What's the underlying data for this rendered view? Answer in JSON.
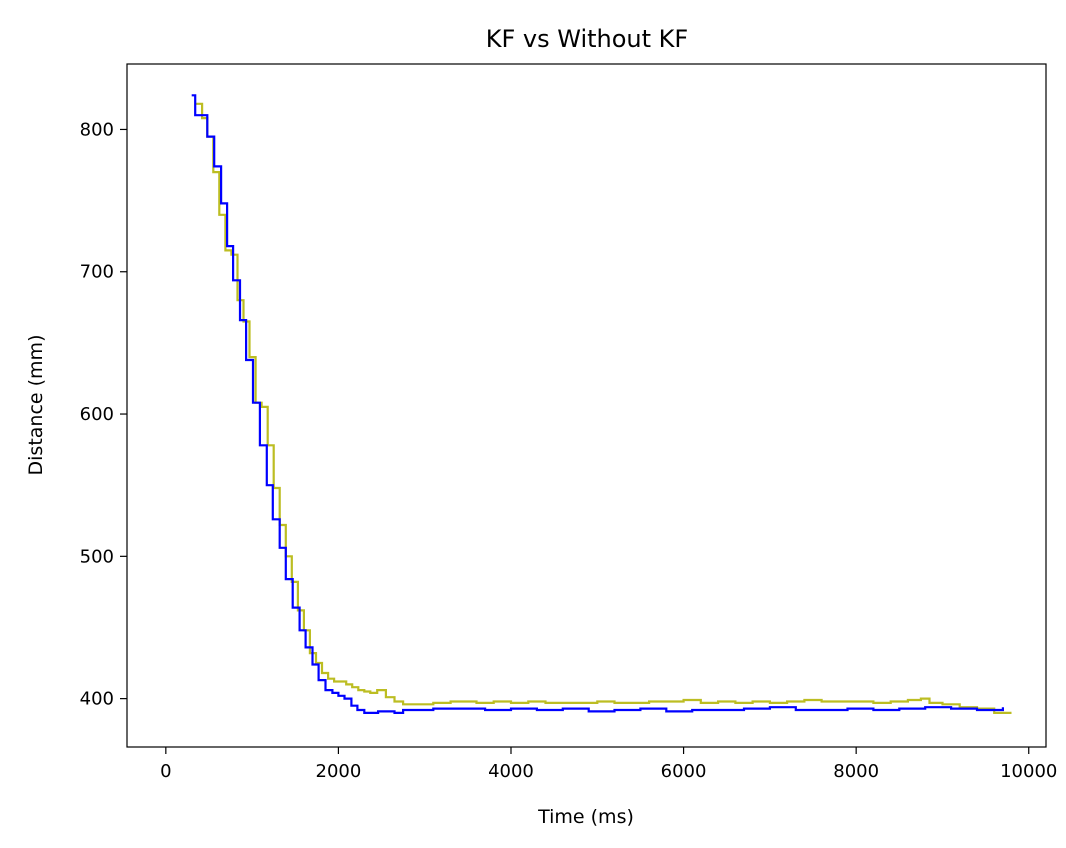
{
  "chart_data": {
    "type": "line",
    "title": "KF vs Without KF",
    "xlabel": "Time (ms)",
    "ylabel": "Distance (mm)",
    "xlim": [
      -450,
      10200
    ],
    "ylim": [
      366,
      846
    ],
    "xticks": [
      0,
      2000,
      4000,
      6000,
      8000,
      10000
    ],
    "xtick_labels": [
      "0",
      "2000",
      "4000",
      "6000",
      "8000",
      "10000"
    ],
    "yticks": [
      400,
      500,
      600,
      700,
      800
    ],
    "ytick_labels": [
      "400",
      "500",
      "600",
      "700",
      "800"
    ],
    "grid": false,
    "series": [
      {
        "color": "#bcbd22",
        "step": true,
        "x": [
          350,
          420,
          480,
          550,
          620,
          690,
          760,
          830,
          900,
          970,
          1040,
          1110,
          1180,
          1250,
          1320,
          1390,
          1460,
          1530,
          1600,
          1670,
          1740,
          1810,
          1880,
          1950,
          2020,
          2090,
          2160,
          2230,
          2300,
          2370,
          2450,
          2550,
          2650,
          2750,
          2900,
          3100,
          3300,
          3450,
          3600,
          3800,
          4000,
          4200,
          4400,
          4600,
          4800,
          5000,
          5200,
          5400,
          5600,
          5800,
          6000,
          6200,
          6400,
          6600,
          6800,
          7000,
          7200,
          7400,
          7600,
          7800,
          8000,
          8200,
          8400,
          8600,
          8750,
          8850,
          9000,
          9200,
          9400,
          9600,
          9800
        ],
        "y": [
          818,
          808,
          795,
          770,
          740,
          715,
          712,
          680,
          665,
          640,
          608,
          605,
          578,
          548,
          522,
          500,
          482,
          462,
          448,
          432,
          425,
          418,
          414,
          412,
          412,
          410,
          408,
          406,
          405,
          404,
          406,
          401,
          398,
          396,
          396,
          397,
          398,
          398,
          397,
          398,
          397,
          398,
          397,
          397,
          397,
          398,
          397,
          397,
          398,
          398,
          399,
          397,
          398,
          397,
          398,
          397,
          398,
          399,
          398,
          398,
          398,
          397,
          398,
          399,
          400,
          397,
          396,
          394,
          393,
          390,
          390
        ]
      },
      {
        "color": "#0000ff",
        "step": true,
        "x": [
          300,
          340,
          420,
          480,
          560,
          640,
          710,
          780,
          860,
          930,
          1010,
          1090,
          1170,
          1240,
          1320,
          1390,
          1470,
          1550,
          1620,
          1700,
          1770,
          1850,
          1930,
          2000,
          2070,
          2150,
          2220,
          2300,
          2380,
          2460,
          2550,
          2650,
          2750,
          2900,
          3100,
          3300,
          3500,
          3700,
          4000,
          4300,
          4600,
          4900,
          5200,
          5500,
          5800,
          6100,
          6400,
          6700,
          7000,
          7300,
          7600,
          7900,
          8200,
          8500,
          8800,
          9100,
          9400,
          9700
        ],
        "y": [
          824,
          810,
          810,
          795,
          774,
          748,
          718,
          694,
          666,
          638,
          608,
          578,
          550,
          526,
          506,
          484,
          464,
          448,
          436,
          424,
          413,
          406,
          404,
          402,
          400,
          395,
          392,
          390,
          390,
          391,
          391,
          390,
          392,
          392,
          393,
          393,
          393,
          392,
          393,
          392,
          393,
          391,
          392,
          393,
          391,
          392,
          392,
          393,
          394,
          392,
          392,
          393,
          392,
          393,
          394,
          393,
          392,
          394
        ]
      }
    ]
  }
}
